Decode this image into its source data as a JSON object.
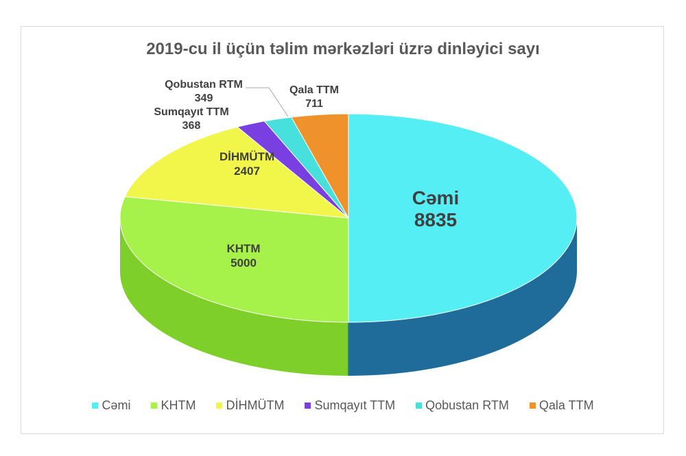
{
  "chart_data": {
    "type": "pie",
    "title": "2019-cu il üçün təlim mərkəzləri üzrə dinləyici sayı",
    "slices": [
      {
        "name": "Cəmi",
        "value": 8835,
        "color": "#55eef4",
        "side": "#1f6c9a"
      },
      {
        "name": "KHTM",
        "value": 5000,
        "color": "#a6f24a",
        "side": "#7fcf2a"
      },
      {
        "name": "DİHMÜTM",
        "value": 2407,
        "color": "#f2f54a",
        "side": "#c9cc22"
      },
      {
        "name": "Sumqayıt TTM",
        "value": 368,
        "color": "#7a3fe0",
        "side": "#5527a8"
      },
      {
        "name": "Qobustan RTM",
        "value": 349,
        "color": "#48e0dc",
        "side": "#2aa9a6"
      },
      {
        "name": "Qala TTM",
        "value": 711,
        "color": "#f0922b",
        "side": "#c46e14"
      }
    ],
    "legend_position": "bottom"
  }
}
